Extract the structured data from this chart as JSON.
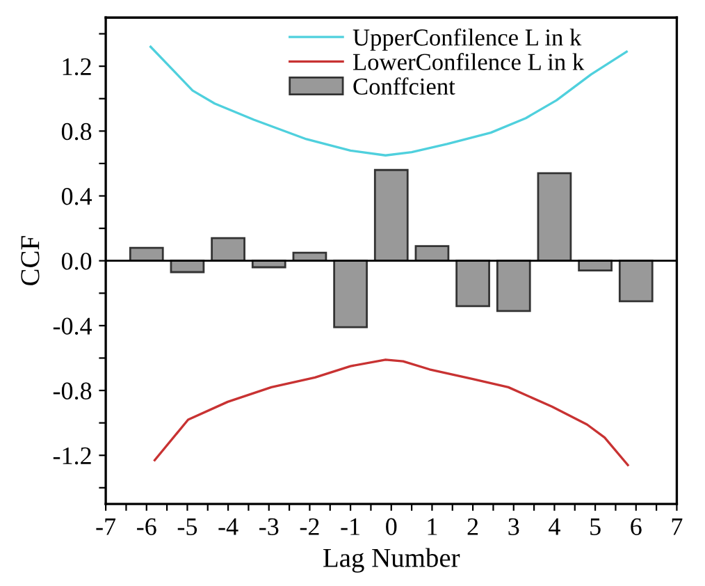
{
  "chart_data": {
    "type": "bar",
    "xlabel": "Lag Number",
    "ylabel": "CCF",
    "x": [
      -6,
      -5,
      -4,
      -3,
      -2,
      -1,
      0,
      1,
      2,
      3,
      4,
      5,
      6
    ],
    "series": [
      {
        "name": "UpperConfilence L in k",
        "type": "line",
        "color": "#4fd0dd",
        "x": [
          -5.9,
          -4.87,
          -4.33,
          -3.37,
          -2.08,
          -1.0,
          -0.14,
          0.5,
          1.37,
          2.44,
          3.3,
          4.05,
          4.9,
          5.77
        ],
        "values": [
          1.32,
          1.05,
          0.97,
          0.87,
          0.75,
          0.68,
          0.65,
          0.67,
          0.72,
          0.79,
          0.88,
          0.99,
          1.15,
          1.29
        ]
      },
      {
        "name": "LowerConfilence L in k",
        "type": "line",
        "color": "#c83232",
        "x": [
          -5.8,
          -4.98,
          -4.01,
          -2.94,
          -1.87,
          -1.0,
          -0.14,
          0.29,
          0.94,
          2.0,
          2.87,
          3.94,
          4.8,
          5.23,
          5.8
        ],
        "values": [
          -1.23,
          -0.98,
          -0.87,
          -0.78,
          -0.72,
          -0.65,
          -0.61,
          -0.62,
          -0.67,
          -0.73,
          -0.78,
          -0.9,
          -1.01,
          -1.09,
          -1.26
        ]
      },
      {
        "name": "Conffcient",
        "color": "#999999",
        "values": [
          0.08,
          -0.07,
          0.14,
          -0.04,
          0.05,
          -0.41,
          0.56,
          0.09,
          -0.28,
          -0.31,
          0.54,
          -0.06,
          -0.25
        ]
      }
    ],
    "xlim": [
      -7,
      7
    ],
    "ylim": [
      -1.5,
      1.5
    ],
    "xticks": [
      -7,
      {
        "value": -6.5,
        "label": null
      },
      -6,
      {
        "value": -5.5,
        "label": null
      },
      -5,
      {
        "value": -4.5,
        "label": null
      },
      -4,
      {
        "value": -3.5,
        "label": null
      },
      -3,
      {
        "value": -2.5,
        "label": null
      },
      -2,
      {
        "value": -1.5,
        "label": null
      },
      -1,
      {
        "value": -0.5,
        "label": null
      },
      0,
      {
        "value": 0.5,
        "label": null
      },
      1,
      {
        "value": 1.5,
        "label": null
      },
      2,
      {
        "value": 2.5,
        "label": null
      },
      3,
      {
        "value": 3.5,
        "label": null
      },
      4,
      {
        "value": 4.5,
        "label": null
      },
      5,
      {
        "value": 5.5,
        "label": null
      },
      6,
      {
        "value": 6.5,
        "label": null
      },
      7
    ],
    "yticks": [
      {
        "value": -1.4,
        "label": null
      },
      -1.2,
      {
        "value": -1.0,
        "label": null
      },
      -0.8,
      {
        "value": -0.6,
        "label": null
      },
      -0.4,
      {
        "value": -0.2,
        "label": null
      },
      {
        "value": 0,
        "label": "0.0"
      },
      {
        "value": 0.2,
        "label": null
      },
      0.4,
      {
        "value": 0.6,
        "label": null
      },
      0.8,
      {
        "value": 1.0,
        "label": null
      },
      1.2,
      {
        "value": 1.4,
        "label": null
      }
    ],
    "ref_lines": [
      {
        "axis": "y",
        "value": 0,
        "color": "#000000"
      }
    ],
    "legend": "top",
    "marker": "none",
    "line_style": "solid"
  }
}
